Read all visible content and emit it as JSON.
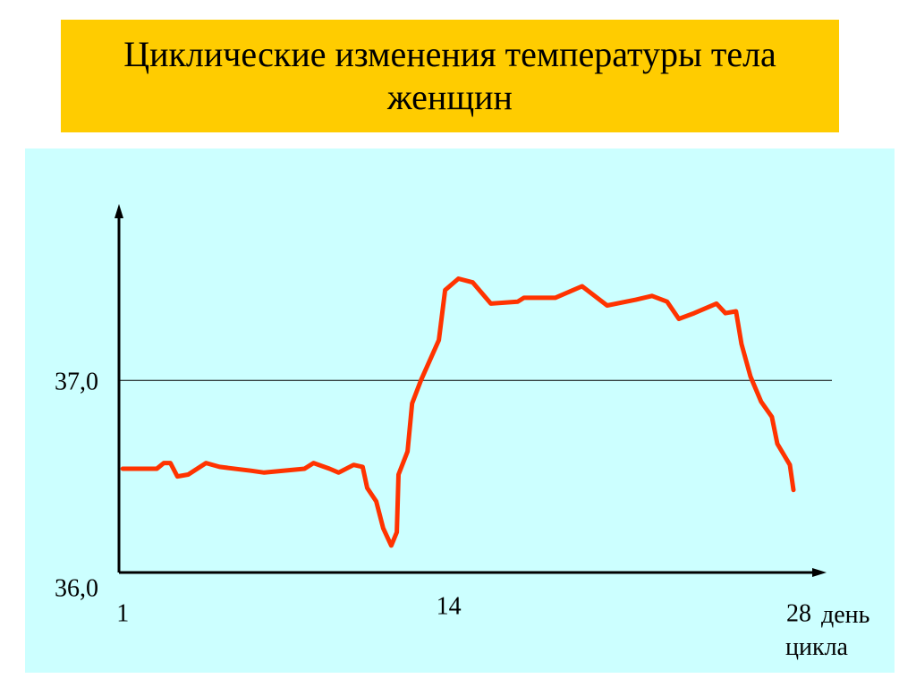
{
  "chart_data": {
    "type": "line",
    "title": "Циклические изменения температуры тела женщин",
    "xlabel": "день цикла",
    "x": [
      1.0,
      2.36,
      2.64,
      2.9,
      3.18,
      3.61,
      4.32,
      4.86,
      6.11,
      6.64,
      8.25,
      8.61,
      9.25,
      9.61,
      10.21,
      10.57,
      10.75,
      11.11,
      11.39,
      11.71,
      11.93,
      12.0,
      12.36,
      12.54,
      12.89,
      13.61,
      13.86,
      14.39,
      14.96,
      15.68,
      16.75,
      17.0,
      18.25,
      19.32,
      20.32,
      21.46,
      22.11,
      22.71,
      23.18,
      23.79,
      24.68,
      25.04,
      25.46,
      25.68,
      26.04,
      26.46,
      26.89,
      27.11,
      27.61,
      27.75
    ],
    "series": [
      {
        "color": "#ff3300",
        "values": [
          36.54,
          36.54,
          36.57,
          36.57,
          36.5,
          36.51,
          36.57,
          36.55,
          36.53,
          36.52,
          36.54,
          36.57,
          36.54,
          36.52,
          36.56,
          36.55,
          36.44,
          36.37,
          36.23,
          36.14,
          36.21,
          36.51,
          36.63,
          36.88,
          37.0,
          37.21,
          37.47,
          37.53,
          37.51,
          37.4,
          37.41,
          37.43,
          37.43,
          37.49,
          37.39,
          37.42,
          37.44,
          37.41,
          37.32,
          37.35,
          37.4,
          37.35,
          37.36,
          37.19,
          37.02,
          36.89,
          36.81,
          36.67,
          36.56,
          36.43
        ]
      }
    ],
    "xlim": [
      0.85,
      29
    ],
    "xticks": [
      1,
      14,
      28
    ],
    "ylim": [
      36,
      37.9
    ],
    "yticks": [
      {
        "value": 36,
        "label": "36,0"
      },
      {
        "value": 37,
        "label": "37,0"
      }
    ],
    "grid": true
  }
}
